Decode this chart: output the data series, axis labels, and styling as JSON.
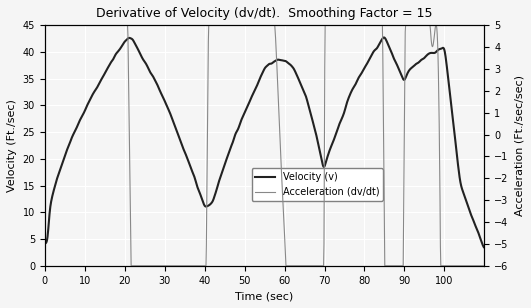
{
  "title": "Derivative of Velocity (dv/dt).  Smoothing Factor = 15",
  "xlabel": "Time (sec)",
  "ylabel_left": "Velocity (Ft./sec)",
  "ylabel_right": "Acceleration (Ft./sec/sec)",
  "xlim": [
    0,
    110
  ],
  "ylim_left": [
    0,
    45
  ],
  "ylim_right": [
    -6,
    5
  ],
  "xticks": [
    0,
    10,
    20,
    30,
    40,
    50,
    60,
    70,
    80,
    90,
    100
  ],
  "yticks_left": [
    0,
    5,
    10,
    15,
    20,
    25,
    30,
    35,
    40,
    45
  ],
  "yticks_right": [
    -6,
    -5,
    -4,
    -3,
    -2,
    -1,
    0,
    1,
    2,
    3,
    4,
    5
  ],
  "velocity_color": "#222222",
  "accel_color": "#888888",
  "background_color": "#f5f5f5",
  "grid_color": "#ffffff",
  "legend_velocity": "Velocity (v)",
  "legend_accel": "Acceleration (dv/dt)"
}
